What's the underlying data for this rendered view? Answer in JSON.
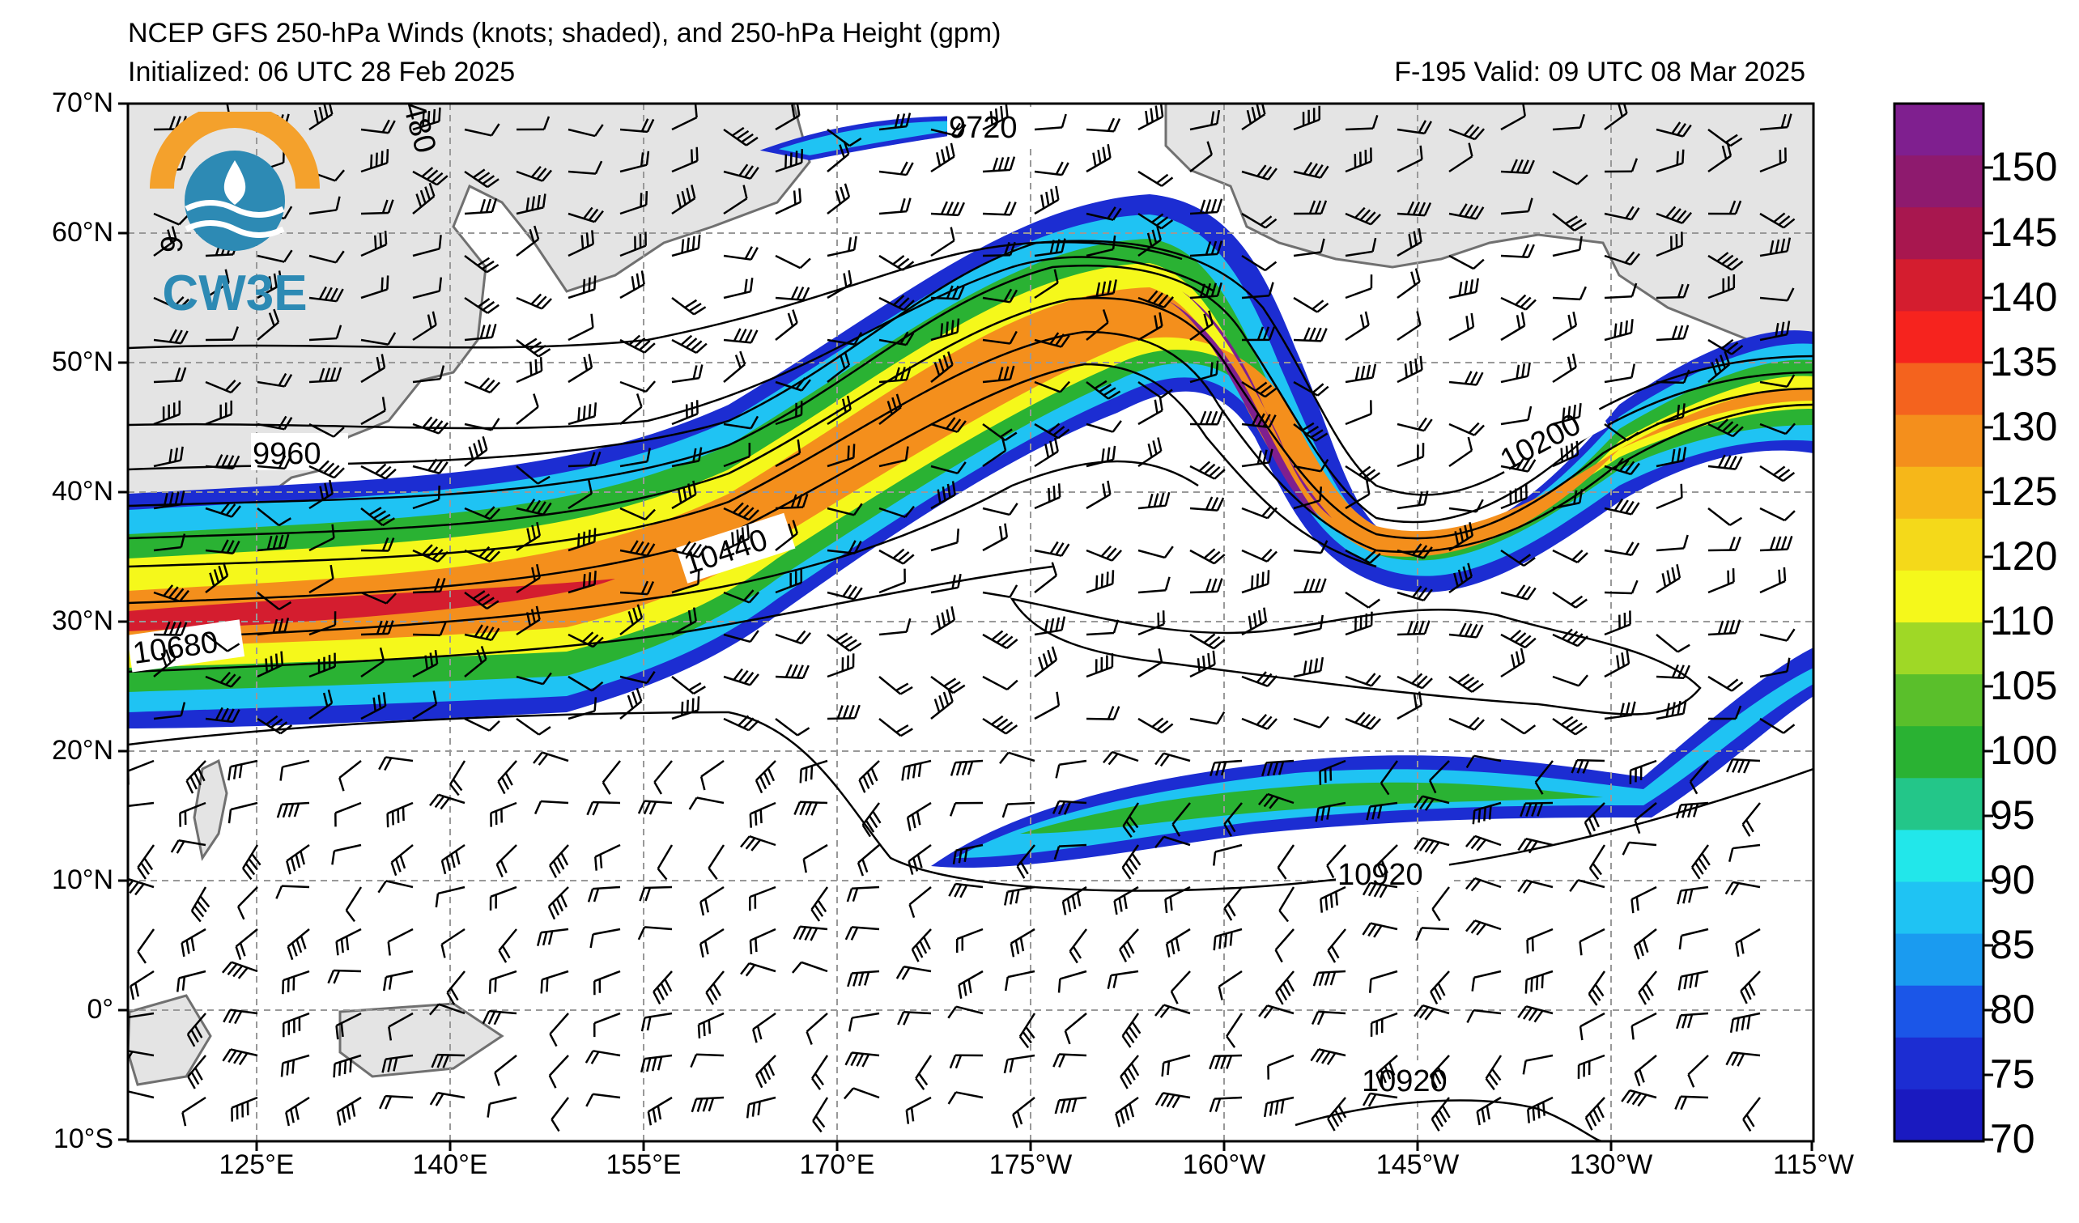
{
  "title": "NCEP GFS 250-hPa Winds (knots; shaded), and 250-hPa Height (gpm)",
  "initialized": "Initialized: 06 UTC 28 Feb 2025",
  "valid": "F-195  Valid: 09 UTC 08 Mar 2025",
  "logo_text": "CW3E",
  "lat_labels": [
    "70°N",
    "60°N",
    "50°N",
    "40°N",
    "30°N",
    "20°N",
    "10°N",
    "0°",
    "10°S"
  ],
  "lon_labels": [
    "125°E",
    "140°E",
    "155°E",
    "170°E",
    "175°W",
    "160°W",
    "145°W",
    "130°W",
    "115°W"
  ],
  "colorbar": {
    "labels": [
      "150",
      "145",
      "140",
      "135",
      "130",
      "125",
      "120",
      "110",
      "105",
      "100",
      "95",
      "90",
      "85",
      "80",
      "75",
      "70"
    ],
    "colors": [
      "#7f1f8f",
      "#8e1a6e",
      "#a8174f",
      "#d41d2f",
      "#f6231e",
      "#f4631e",
      "#f48f1c",
      "#f6b719",
      "#f4d91a",
      "#f5f81b",
      "#9fd826",
      "#5abf2b",
      "#2ab233",
      "#23c689",
      "#22e7ea",
      "#1fc3f3",
      "#1a9bf0",
      "#1b56e8",
      "#1c2dd2",
      "#1a1ac0"
    ]
  },
  "contour_labels": [
    "9720",
    "9960",
    "10440",
    "10680",
    "10200",
    "10920",
    "10920",
    "480",
    "6"
  ],
  "colors": {
    "land": "#e4e4e4",
    "coast": "#707070",
    "grid": "#999999"
  }
}
